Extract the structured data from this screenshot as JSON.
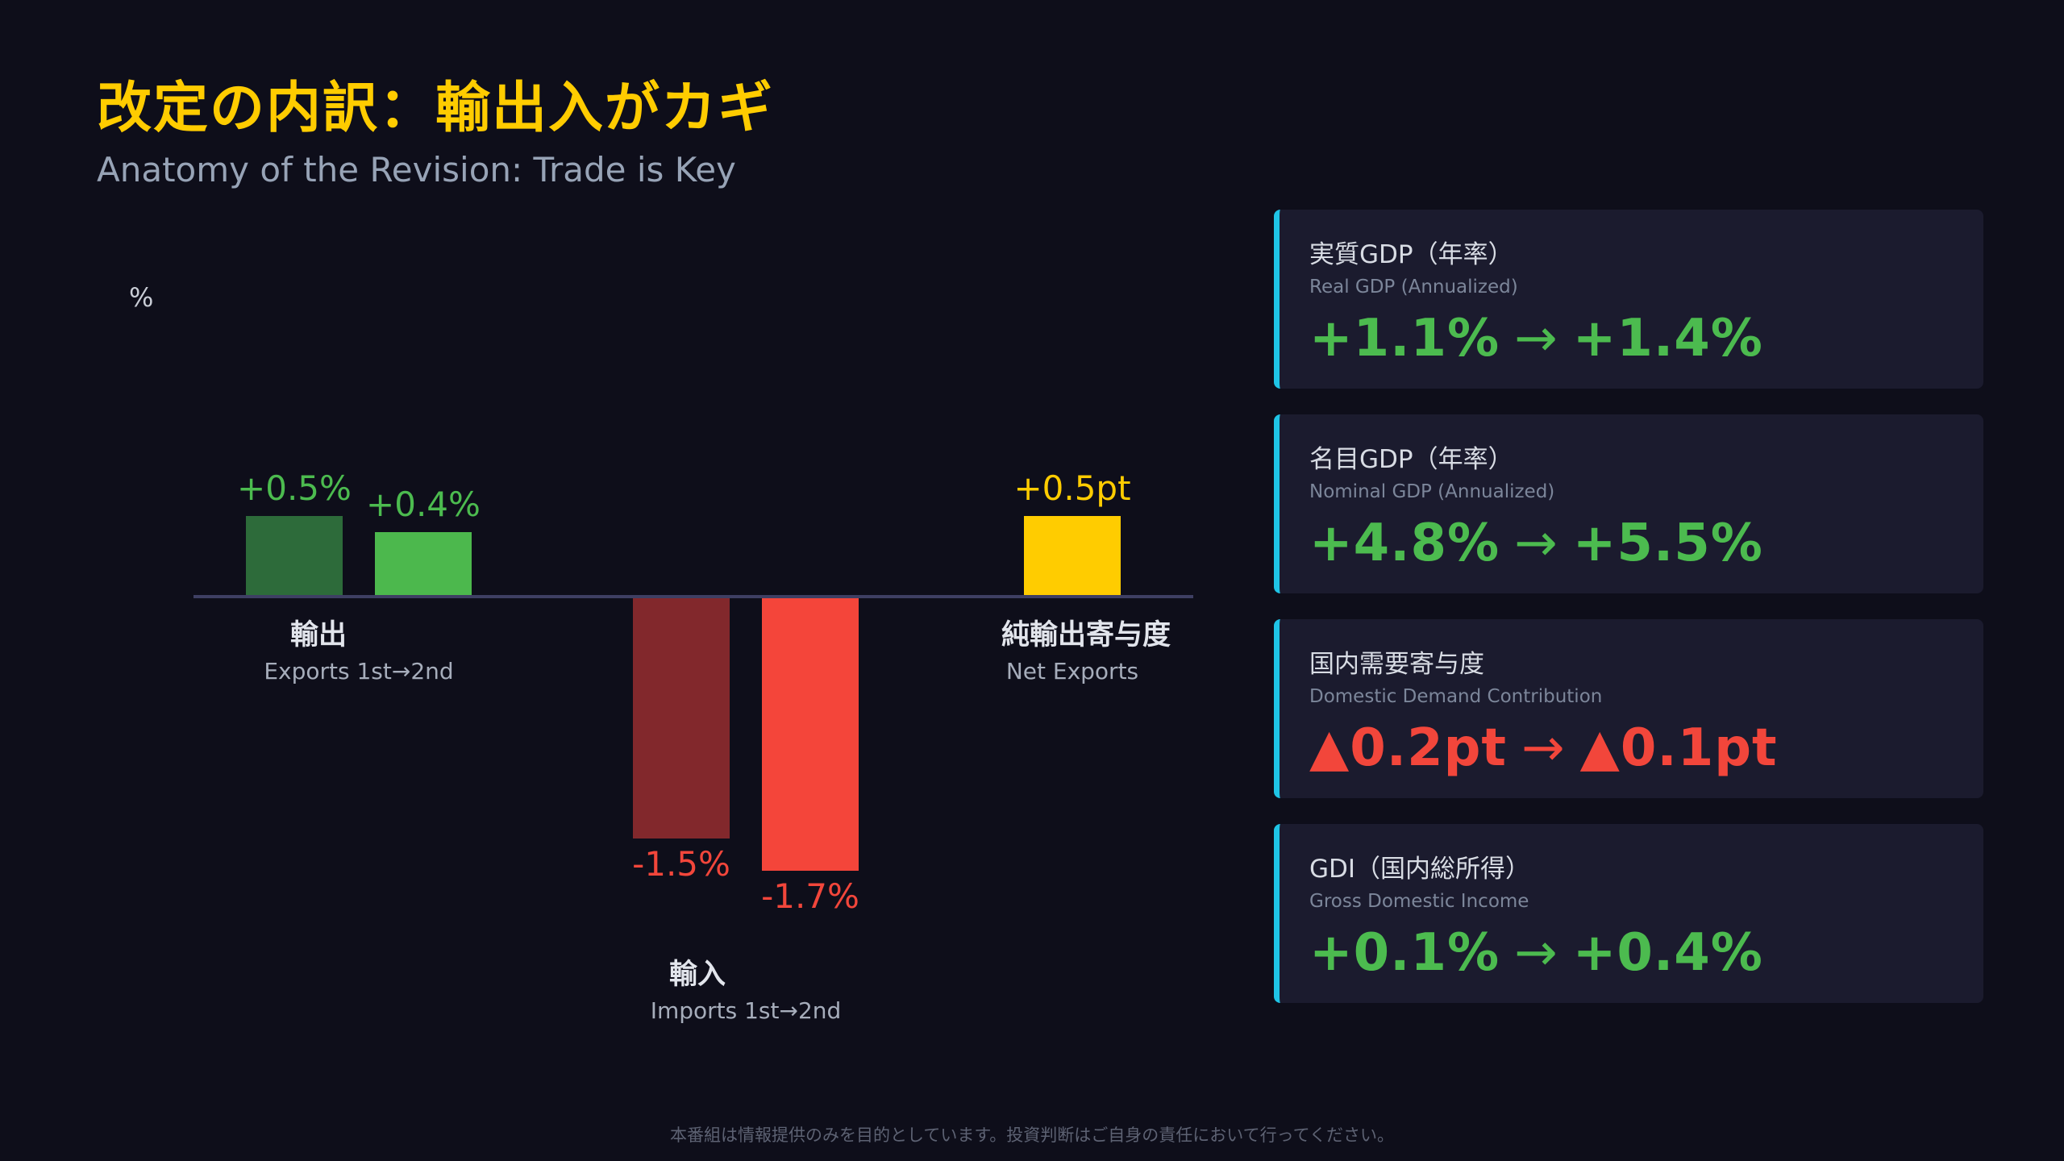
{
  "title": "改定の内訳：輸出入がカギ",
  "subtitle": "Anatomy of the Revision: Trade is Key",
  "chart_data": {
    "type": "bar",
    "ylabel": "%",
    "ylim": [
      -2.0,
      1.0
    ],
    "grid": false,
    "legend": "none",
    "groups": [
      {
        "label_ja": "輸出",
        "label_en": "Exports 1st→2nd",
        "bars": [
          {
            "value": 0.5,
            "label": "+0.5%",
            "color": "#2d6b3a",
            "label_color": "#4cbb4f"
          },
          {
            "value": 0.4,
            "label": "+0.4%",
            "color": "#4cb84d",
            "label_color": "#4cbb4f"
          }
        ]
      },
      {
        "label_ja": "輸入",
        "label_en": "Imports 1st→2nd",
        "bars": [
          {
            "value": -1.5,
            "label": "-1.5%",
            "color": "#82282c",
            "label_color": "#f2463b"
          },
          {
            "value": -1.7,
            "label": "-1.7%",
            "color": "#f4453a",
            "label_color": "#f2463b"
          }
        ]
      },
      {
        "label_ja": "純輸出寄与度",
        "label_en": "Net Exports",
        "bars": [
          {
            "value": 0.5,
            "label": "+0.5pt",
            "color": "#ffcc00",
            "label_color": "#ffcc00"
          }
        ]
      }
    ]
  },
  "cards": [
    {
      "label_ja": "実質GDP（年率）",
      "label_en": "Real GDP (Annualized)",
      "from": "+1.1%",
      "to": "+1.4%",
      "arrow": "→",
      "color": "#4cbb4f"
    },
    {
      "label_ja": "名目GDP（年率）",
      "label_en": "Nominal GDP (Annualized)",
      "from": "+4.8%",
      "to": "+5.5%",
      "arrow": "→",
      "color": "#4cbb4f"
    },
    {
      "label_ja": "国内需要寄与度",
      "label_en": "Domestic Demand Contribution",
      "from": "▲0.2pt",
      "to": "▲0.1pt",
      "arrow": "→",
      "color": "#f2463b"
    },
    {
      "label_ja": "GDI（国内総所得）",
      "label_en": "Gross Domestic Income",
      "from": "+0.1%",
      "to": "+0.4%",
      "arrow": "→",
      "color": "#4cbb4f"
    }
  ],
  "footer": "本番組は情報提供のみを目的としています。投資判断はご自身の責任において行ってください。",
  "colors": {
    "background": "#0e0e1a",
    "accent": "#ffcc00",
    "card_border": "#1fc4e6",
    "positive": "#4cbb4f",
    "negative": "#f2463b"
  }
}
